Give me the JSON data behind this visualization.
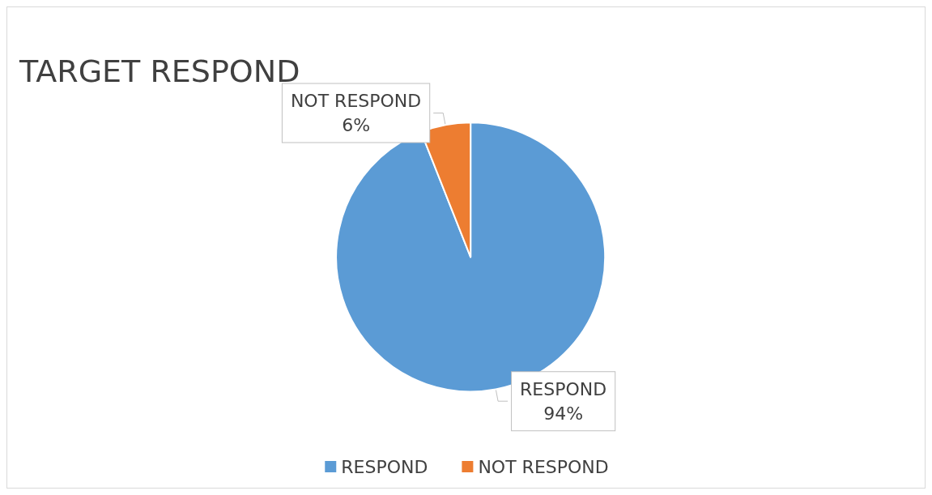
{
  "chart_data": {
    "type": "pie",
    "title": "TARGET RESPOND",
    "categories": [
      "RESPOND",
      "NOT RESPOND"
    ],
    "values": [
      94,
      6
    ],
    "colors": [
      "#5b9bd5",
      "#ed7d31"
    ],
    "value_labels": [
      "94%",
      "6%"
    ],
    "legend": "bottom"
  }
}
